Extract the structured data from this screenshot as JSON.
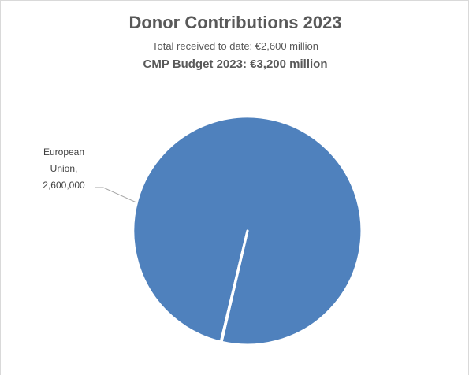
{
  "chart_data": {
    "type": "pie",
    "title": "Donor Contributions 2023",
    "subtitle": "Total received to date: €2,600 million",
    "subtitle2": "CMP Budget 2023: €3,200 million",
    "slices": [
      {
        "label_lines": [
          "European",
          "Union,",
          "2,600,000"
        ],
        "value": 2600000,
        "color": "#4f81bd"
      },
      {
        "label_lines": [],
        "value": 2600,
        "color": "#4f81bd"
      }
    ],
    "legend": "none"
  }
}
